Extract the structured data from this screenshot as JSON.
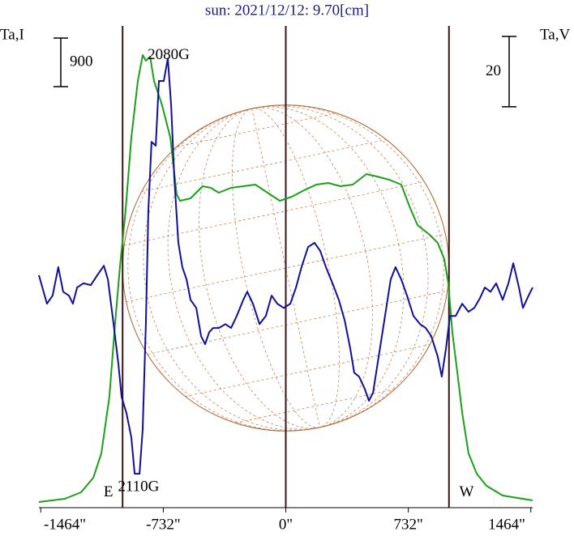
{
  "chart_data": {
    "type": "line",
    "title": "sun: 2021/12/12: 9.70[cm]",
    "ylabel": "Ta,I",
    "y2label": "Ta,V",
    "xlim": [
      -1475,
      1475
    ],
    "xticks": [
      {
        "value": -1464,
        "label": "-1464\""
      },
      {
        "value": -732,
        "label": "-732\""
      },
      {
        "value": 0,
        "label": "0\""
      },
      {
        "value": 732,
        "label": "732\""
      },
      {
        "value": 1464,
        "label": "1464\""
      }
    ],
    "ylim": [
      0,
      8880
    ],
    "y2lim": [
      -61.4,
      74.8
    ],
    "vlines": [
      -975,
      0,
      975
    ],
    "scale_bars": [
      {
        "value": 900,
        "axis": "y"
      },
      {
        "value": 20,
        "axis": "y2"
      }
    ],
    "annotations": [
      {
        "text": "2080G",
        "x": -700,
        "y": 8300
      },
      {
        "text": "2110G",
        "x": -880,
        "y": 300
      },
      {
        "text": "E",
        "x": -1060,
        "y": 200
      },
      {
        "text": "W",
        "x": 1080,
        "y": 200
      }
    ],
    "series": [
      {
        "name": "Ta,I",
        "color": "#1aa01a",
        "axis": "y",
        "x": [
          -1475,
          -1320,
          -1223,
          -1150,
          -1102,
          -1054,
          -1020,
          -991,
          -957,
          -923,
          -884,
          -855,
          -836,
          -811,
          -787,
          -739,
          -690,
          -652,
          -632,
          -569,
          -497,
          -448,
          -400,
          -327,
          -254,
          -182,
          -109,
          -36,
          36,
          109,
          182,
          254,
          327,
          400,
          482,
          545,
          618,
          690,
          739,
          787,
          860,
          908,
          947,
          971,
          995,
          1025,
          1054,
          1092,
          1141,
          1199,
          1296,
          1475
        ],
        "values": [
          30,
          90,
          210,
          480,
          930,
          1980,
          3330,
          4380,
          5430,
          6780,
          7830,
          8310,
          8205,
          8280,
          7830,
          7380,
          6780,
          5730,
          5610,
          5655,
          5880,
          5850,
          5760,
          5850,
          5880,
          5910,
          5760,
          5610,
          5685,
          5805,
          5910,
          5940,
          5880,
          5910,
          6105,
          6060,
          6000,
          5910,
          5505,
          5160,
          4980,
          4830,
          4530,
          4080,
          3180,
          2430,
          1680,
          930,
          555,
          330,
          150,
          60
        ]
      },
      {
        "name": "Ta,V",
        "color": "#10109a",
        "axis": "y2",
        "x": [
          -1475,
          -1427,
          -1393,
          -1359,
          -1330,
          -1296,
          -1272,
          -1247,
          -1209,
          -1165,
          -1126,
          -1087,
          -1063,
          -1029,
          -1000,
          -981,
          -952,
          -923,
          -903,
          -874,
          -855,
          -836,
          -821,
          -802,
          -777,
          -758,
          -729,
          -705,
          -685,
          -666,
          -642,
          -618,
          -593,
          -569,
          -535,
          -506,
          -482,
          -458,
          -434,
          -400,
          -361,
          -327,
          -293,
          -254,
          -230,
          -196,
          -157,
          -119,
          -85,
          -51,
          -12,
          27,
          61,
          94,
          133,
          172,
          206,
          240,
          279,
          317,
          351,
          385,
          409,
          438,
          472,
          497,
          521,
          555,
          593,
          627,
          656,
          690,
          724,
          763,
          802,
          836,
          869,
          908,
          932,
          957,
          981,
          1015,
          1054,
          1092,
          1126,
          1160,
          1189,
          1223,
          1257,
          1296,
          1330,
          1359,
          1393,
          1417,
          1451,
          1475
        ],
        "values": [
          3.5,
          -4.6,
          -2.3,
          5.8,
          -1.2,
          -2.3,
          -4.6,
          0,
          1.2,
          0.7,
          3.5,
          6.2,
          2.3,
          -10.4,
          -21.9,
          -31.1,
          -35.7,
          -42.6,
          -52.9,
          -52.9,
          -40.3,
          -10.4,
          21.9,
          41.4,
          40.3,
          58.7,
          58.7,
          65.1,
          51.8,
          31.1,
          12.7,
          5.8,
          2.3,
          -3.5,
          -5.8,
          -13.8,
          -16.1,
          -12.7,
          -11.5,
          -11.5,
          -10.4,
          -11.5,
          -8.1,
          -3.5,
          -1.2,
          -4.6,
          -10.4,
          -8.1,
          -2.3,
          -4.6,
          -5.8,
          -4.6,
          0,
          5.8,
          11.5,
          12.7,
          10.4,
          5.8,
          1.2,
          -3.5,
          -9.2,
          -17.3,
          -24.2,
          -25.3,
          -28.8,
          -32.2,
          -29.9,
          -19.6,
          -8.1,
          2.3,
          5.8,
          2.3,
          -2.3,
          -8.1,
          -10.4,
          -11.5,
          -13.8,
          -19.6,
          -25.3,
          -17.3,
          -8.1,
          -8.1,
          -4.6,
          -6.9,
          -5.8,
          -3.0,
          0,
          -1.2,
          1.2,
          -3.5,
          1.2,
          6.9,
          0,
          -5.8,
          -2.3,
          0
        ]
      }
    ]
  }
}
